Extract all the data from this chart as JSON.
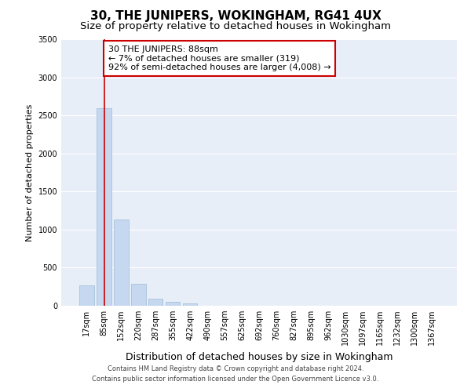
{
  "title": "30, THE JUNIPERS, WOKINGHAM, RG41 4UX",
  "subtitle": "Size of property relative to detached houses in Wokingham",
  "xlabel": "Distribution of detached houses by size in Wokingham",
  "ylabel": "Number of detached properties",
  "categories": [
    "17sqm",
    "85sqm",
    "152sqm",
    "220sqm",
    "287sqm",
    "355sqm",
    "422sqm",
    "490sqm",
    "557sqm",
    "625sqm",
    "692sqm",
    "760sqm",
    "827sqm",
    "895sqm",
    "962sqm",
    "1030sqm",
    "1097sqm",
    "1165sqm",
    "1232sqm",
    "1300sqm",
    "1367sqm"
  ],
  "values": [
    270,
    2590,
    1130,
    290,
    95,
    55,
    35,
    0,
    0,
    0,
    0,
    0,
    0,
    0,
    0,
    0,
    0,
    0,
    0,
    0,
    0
  ],
  "bar_color": "#c5d8f0",
  "bar_edge_color": "#9dbcd4",
  "annotation_text_line1": "30 THE JUNIPERS: 88sqm",
  "annotation_text_line2": "← 7% of detached houses are smaller (319)",
  "annotation_text_line3": "92% of semi-detached houses are larger (4,008) →",
  "annotation_box_facecolor": "#ffffff",
  "annotation_box_edgecolor": "#cc0000",
  "red_line_color": "#cc0000",
  "ylim": [
    0,
    3500
  ],
  "yticks": [
    0,
    500,
    1000,
    1500,
    2000,
    2500,
    3000,
    3500
  ],
  "plot_bg_color": "#e8eef8",
  "grid_color": "#ffffff",
  "footer_line1": "Contains HM Land Registry data © Crown copyright and database right 2024.",
  "footer_line2": "Contains public sector information licensed under the Open Government Licence v3.0.",
  "title_fontsize": 11,
  "subtitle_fontsize": 9.5,
  "xlabel_fontsize": 9,
  "ylabel_fontsize": 8,
  "tick_fontsize": 7,
  "annotation_fontsize": 8,
  "footer_fontsize": 6
}
